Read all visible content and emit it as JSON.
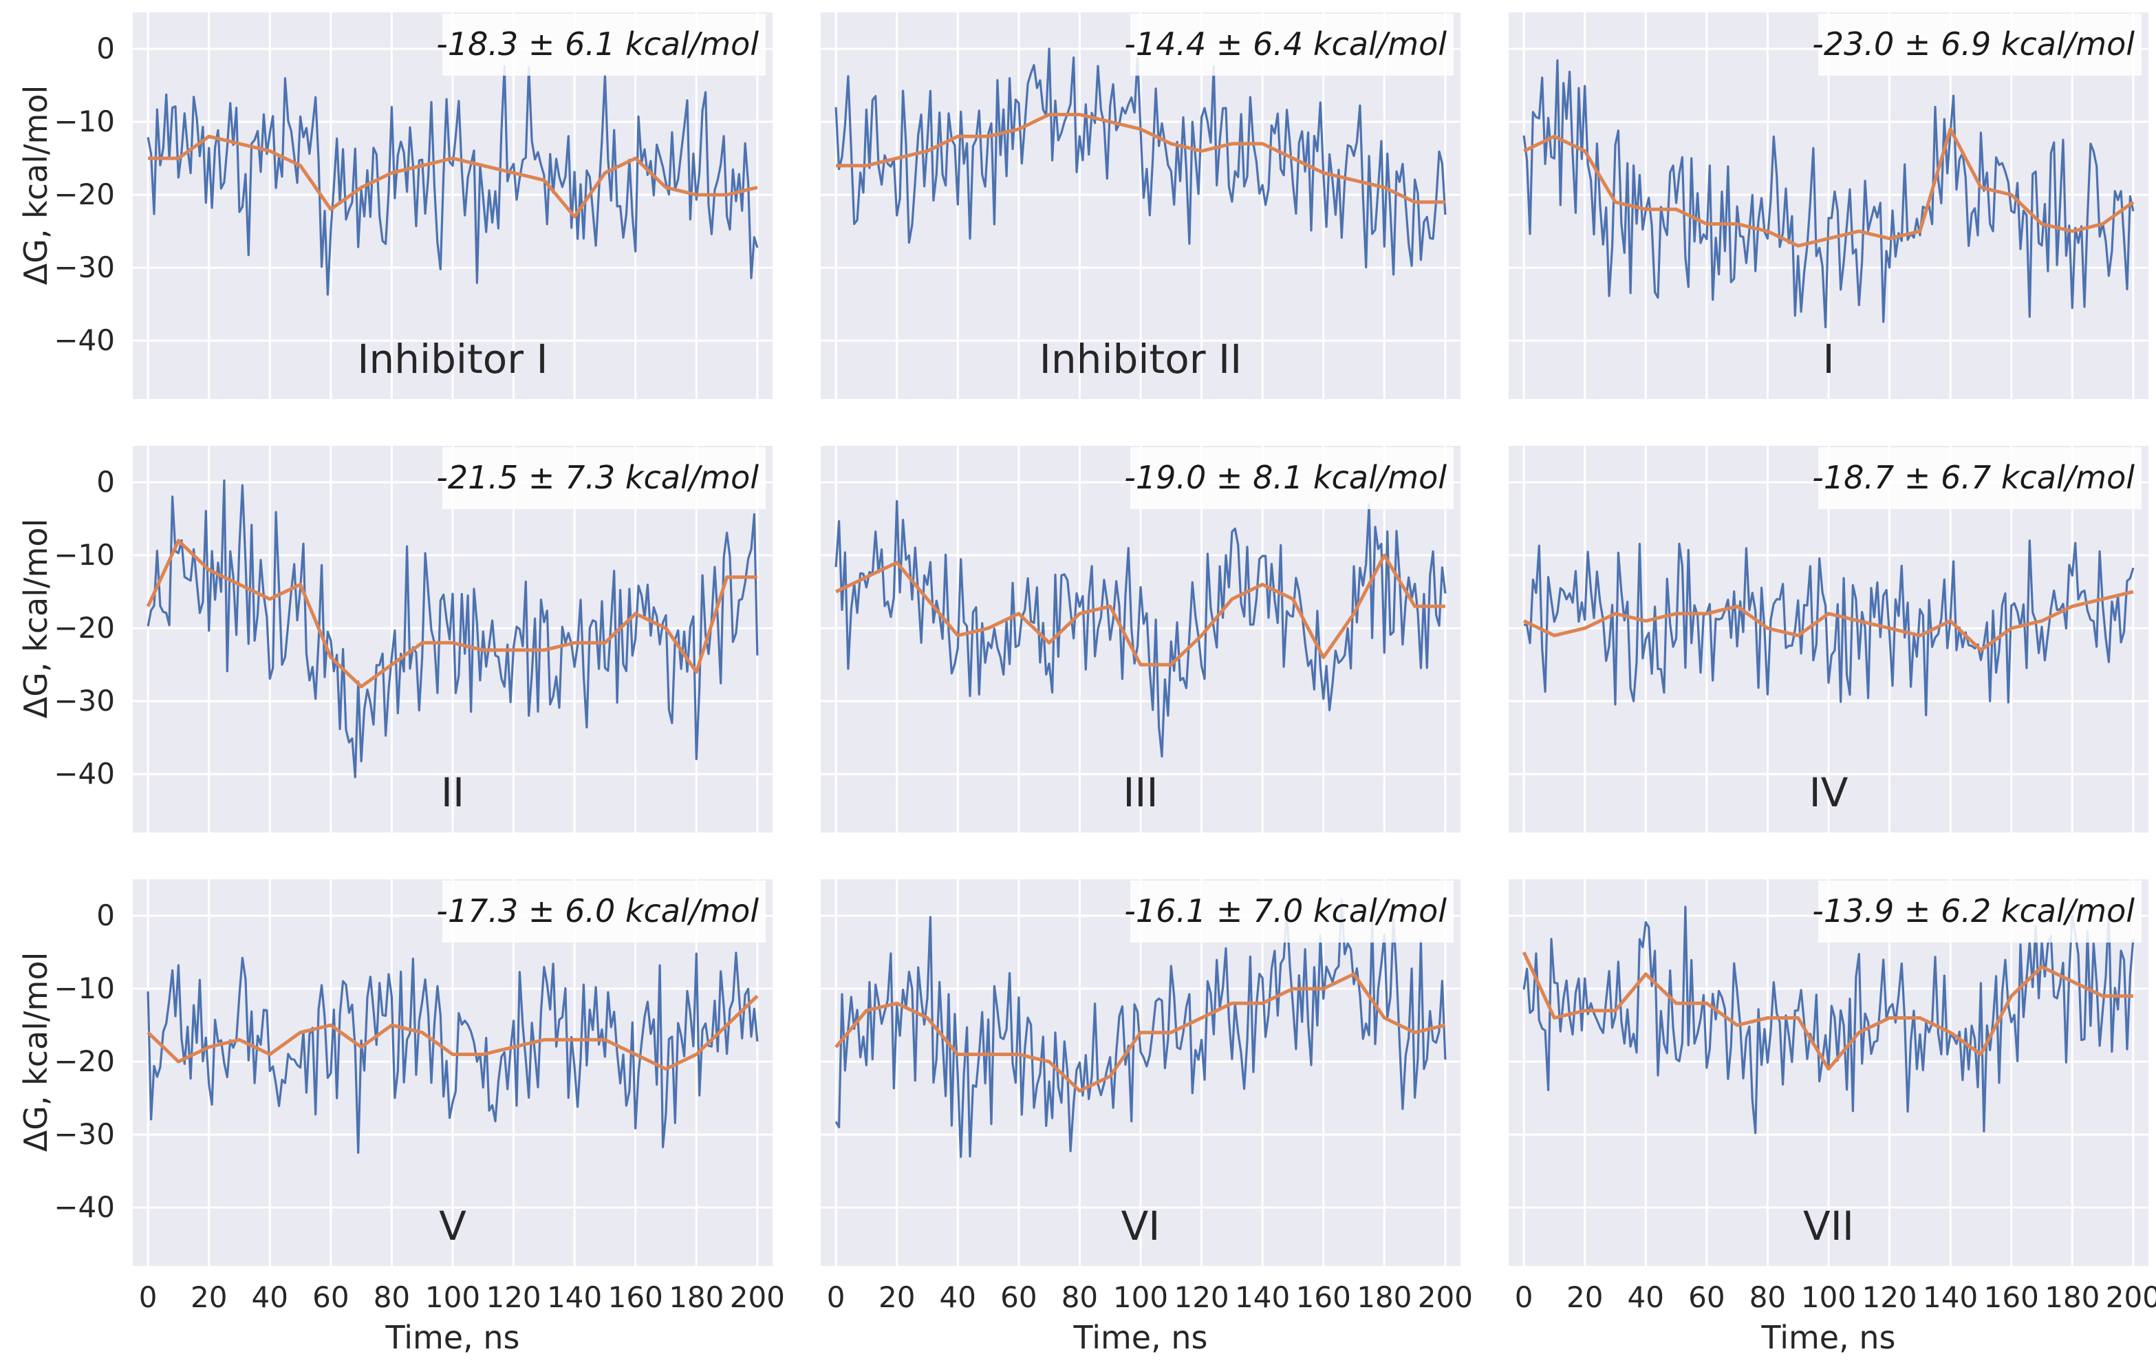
{
  "figure": {
    "ylabel": "ΔG, kcal/mol",
    "xlabel": "Time, ns",
    "y_ticks": [
      0,
      -10,
      -20,
      -30,
      -40
    ],
    "y_tick_labels": [
      "0",
      "−10",
      "−20",
      "−30",
      "−40"
    ],
    "x_ticks": [
      0,
      20,
      40,
      60,
      80,
      100,
      120,
      140,
      160,
      180,
      200
    ],
    "x_tick_labels": [
      "0",
      "20",
      "40",
      "60",
      "80",
      "100",
      "120",
      "140",
      "160",
      "180",
      "200"
    ],
    "colors": {
      "raw": "#4c72b0",
      "smoothed": "#dd8452",
      "background": "#eaeaf2",
      "grid": "#ffffff"
    }
  },
  "chart_data": [
    {
      "type": "line",
      "label": "Inhibitor I",
      "annotation": "-18.3 ± 6.1 kcal/mol",
      "xlim": [
        -5,
        205
      ],
      "ylim": [
        -48,
        5
      ],
      "xlabel": "",
      "ylabel": "ΔG, kcal/mol",
      "series": [
        {
          "name": "raw",
          "x": [
            0,
            10,
            20,
            30,
            40,
            50,
            60,
            70,
            80,
            90,
            100,
            110,
            120,
            130,
            140,
            150,
            160,
            170,
            180,
            190,
            200
          ],
          "values": [
            -14,
            -12,
            -13,
            -16,
            -14,
            -13,
            -25,
            -20,
            -16,
            -18,
            -14,
            -18,
            -15,
            -16,
            -25,
            -12,
            -20,
            -17,
            -16,
            -20,
            -23
          ]
        },
        {
          "name": "smoothed",
          "x": [
            0,
            10,
            20,
            30,
            40,
            50,
            60,
            70,
            80,
            90,
            100,
            110,
            120,
            130,
            140,
            150,
            160,
            170,
            180,
            190,
            200
          ],
          "values": [
            -15,
            -15,
            -12,
            -13,
            -14,
            -16,
            -22,
            -19,
            -17,
            -16,
            -15,
            -16,
            -17,
            -18,
            -23,
            -17,
            -15,
            -19,
            -20,
            -20,
            -19
          ]
        }
      ]
    },
    {
      "type": "line",
      "label": "Inhibitor II",
      "annotation": "-14.4 ± 6.4 kcal/mol",
      "xlim": [
        -5,
        205
      ],
      "ylim": [
        -48,
        5
      ],
      "xlabel": "",
      "ylabel": "",
      "series": [
        {
          "name": "raw",
          "x": [
            0,
            10,
            20,
            30,
            40,
            50,
            60,
            70,
            80,
            90,
            100,
            110,
            120,
            130,
            140,
            150,
            160,
            170,
            180,
            190,
            200
          ],
          "values": [
            -16,
            -15,
            -16,
            -14,
            -12,
            -14,
            -12,
            -8,
            -10,
            -9,
            -12,
            -16,
            -13,
            -14,
            -12,
            -16,
            -18,
            -18,
            -20,
            -22,
            -20
          ]
        },
        {
          "name": "smoothed",
          "x": [
            0,
            10,
            20,
            30,
            40,
            50,
            60,
            70,
            80,
            90,
            100,
            110,
            120,
            130,
            140,
            150,
            160,
            170,
            180,
            190,
            200
          ],
          "values": [
            -16,
            -16,
            -15,
            -14,
            -12,
            -12,
            -11,
            -9,
            -9,
            -10,
            -11,
            -13,
            -14,
            -13,
            -13,
            -15,
            -17,
            -18,
            -19,
            -21,
            -21
          ]
        }
      ]
    },
    {
      "type": "line",
      "label": "I",
      "annotation": "-23.0 ± 6.9 kcal/mol",
      "xlim": [
        -5,
        205
      ],
      "ylim": [
        -48,
        5
      ],
      "xlabel": "",
      "ylabel": "",
      "series": [
        {
          "name": "raw",
          "x": [
            0,
            10,
            20,
            30,
            40,
            50,
            60,
            70,
            80,
            90,
            100,
            110,
            120,
            130,
            140,
            150,
            160,
            170,
            180,
            190,
            200
          ],
          "values": [
            -15,
            -12,
            -14,
            -22,
            -23,
            -22,
            -24,
            -26,
            -25,
            -28,
            -27,
            -25,
            -27,
            -24,
            -12,
            -20,
            -21,
            -24,
            -26,
            -24,
            -21
          ]
        },
        {
          "name": "smoothed",
          "x": [
            0,
            10,
            20,
            30,
            40,
            50,
            60,
            70,
            80,
            90,
            100,
            110,
            120,
            130,
            140,
            150,
            160,
            170,
            180,
            190,
            200
          ],
          "values": [
            -14,
            -12,
            -14,
            -21,
            -22,
            -22,
            -24,
            -24,
            -25,
            -27,
            -26,
            -25,
            -26,
            -25,
            -11,
            -19,
            -20,
            -24,
            -25,
            -24,
            -21
          ]
        }
      ]
    },
    {
      "type": "line",
      "label": "II",
      "annotation": "-21.5 ± 7.3 kcal/mol",
      "xlim": [
        -5,
        205
      ],
      "ylim": [
        -48,
        5
      ],
      "xlabel": "",
      "ylabel": "ΔG, kcal/mol",
      "series": [
        {
          "name": "raw",
          "x": [
            0,
            10,
            20,
            30,
            40,
            50,
            60,
            70,
            80,
            90,
            100,
            110,
            120,
            130,
            140,
            150,
            160,
            170,
            180,
            190,
            200
          ],
          "values": [
            -18,
            -8,
            -12,
            -14,
            -16,
            -14,
            -24,
            -28,
            -24,
            -22,
            -22,
            -23,
            -24,
            -23,
            -22,
            -23,
            -18,
            -20,
            -26,
            -14,
            -13
          ]
        },
        {
          "name": "smoothed",
          "x": [
            0,
            10,
            20,
            30,
            40,
            50,
            60,
            70,
            80,
            90,
            100,
            110,
            120,
            130,
            140,
            150,
            160,
            170,
            180,
            190,
            200
          ],
          "values": [
            -17,
            -8,
            -12,
            -14,
            -16,
            -14,
            -24,
            -28,
            -25,
            -22,
            -22,
            -23,
            -23,
            -23,
            -22,
            -22,
            -18,
            -20,
            -26,
            -13,
            -13
          ]
        }
      ]
    },
    {
      "type": "line",
      "label": "III",
      "annotation": "-19.0 ± 8.1 kcal/mol",
      "xlim": [
        -5,
        205
      ],
      "ylim": [
        -48,
        5
      ],
      "xlabel": "",
      "ylabel": "",
      "series": [
        {
          "name": "raw",
          "x": [
            0,
            10,
            20,
            30,
            40,
            50,
            60,
            70,
            80,
            90,
            100,
            110,
            120,
            130,
            140,
            150,
            160,
            170,
            180,
            190,
            200
          ],
          "values": [
            -16,
            -14,
            -10,
            -16,
            -22,
            -20,
            -18,
            -22,
            -18,
            -18,
            -24,
            -26,
            -20,
            -16,
            -14,
            -16,
            -24,
            -18,
            -9,
            -17,
            -17
          ]
        },
        {
          "name": "smoothed",
          "x": [
            0,
            10,
            20,
            30,
            40,
            50,
            60,
            70,
            80,
            90,
            100,
            110,
            120,
            130,
            140,
            150,
            160,
            170,
            180,
            190,
            200
          ],
          "values": [
            -15,
            -13,
            -11,
            -16,
            -21,
            -20,
            -18,
            -22,
            -18,
            -17,
            -25,
            -25,
            -21,
            -16,
            -14,
            -16,
            -24,
            -18,
            -10,
            -17,
            -17
          ]
        }
      ]
    },
    {
      "type": "line",
      "label": "IV",
      "annotation": "-18.7 ± 6.7 kcal/mol",
      "xlim": [
        -5,
        205
      ],
      "ylim": [
        -48,
        5
      ],
      "xlabel": "",
      "ylabel": "",
      "series": [
        {
          "name": "raw",
          "x": [
            0,
            10,
            20,
            30,
            40,
            50,
            60,
            70,
            80,
            90,
            100,
            110,
            120,
            130,
            140,
            150,
            160,
            170,
            180,
            190,
            200
          ],
          "values": [
            -19,
            -20,
            -20,
            -18,
            -20,
            -18,
            -18,
            -16,
            -20,
            -22,
            -18,
            -19,
            -20,
            -21,
            -19,
            -22,
            -20,
            -20,
            -18,
            -16,
            -15
          ]
        },
        {
          "name": "smoothed",
          "x": [
            0,
            10,
            20,
            30,
            40,
            50,
            60,
            70,
            80,
            90,
            100,
            110,
            120,
            130,
            140,
            150,
            160,
            170,
            180,
            190,
            200
          ],
          "values": [
            -19,
            -21,
            -20,
            -18,
            -19,
            -18,
            -18,
            -17,
            -20,
            -21,
            -18,
            -19,
            -20,
            -21,
            -19,
            -23,
            -20,
            -19,
            -17,
            -16,
            -15
          ]
        }
      ]
    },
    {
      "type": "line",
      "label": "V",
      "annotation": "-17.3 ± 6.0 kcal/mol",
      "xlim": [
        -5,
        205
      ],
      "ylim": [
        -48,
        5
      ],
      "xlabel": "Time, ns",
      "ylabel": "ΔG, kcal/mol",
      "series": [
        {
          "name": "raw",
          "x": [
            0,
            10,
            20,
            30,
            40,
            50,
            60,
            70,
            80,
            90,
            100,
            110,
            120,
            130,
            140,
            150,
            160,
            170,
            180,
            190,
            200
          ],
          "values": [
            -16,
            -20,
            -18,
            -17,
            -19,
            -16,
            -15,
            -18,
            -14,
            -16,
            -19,
            -20,
            -18,
            -16,
            -17,
            -17,
            -19,
            -21,
            -19,
            -14,
            -11
          ]
        },
        {
          "name": "smoothed",
          "x": [
            0,
            10,
            20,
            30,
            40,
            50,
            60,
            70,
            80,
            90,
            100,
            110,
            120,
            130,
            140,
            150,
            160,
            170,
            180,
            190,
            200
          ],
          "values": [
            -16,
            -20,
            -18,
            -17,
            -19,
            -16,
            -15,
            -18,
            -15,
            -16,
            -19,
            -19,
            -18,
            -17,
            -17,
            -17,
            -19,
            -21,
            -19,
            -15,
            -11
          ]
        }
      ]
    },
    {
      "type": "line",
      "label": "VI",
      "annotation": "-16.1 ± 7.0 kcal/mol",
      "xlim": [
        -5,
        205
      ],
      "ylim": [
        -48,
        5
      ],
      "xlabel": "Time, ns",
      "ylabel": "",
      "series": [
        {
          "name": "raw",
          "x": [
            0,
            10,
            20,
            30,
            40,
            50,
            60,
            70,
            80,
            90,
            100,
            110,
            120,
            130,
            140,
            150,
            160,
            170,
            180,
            190,
            200
          ],
          "values": [
            -18,
            -13,
            -12,
            -14,
            -19,
            -19,
            -20,
            -20,
            -24,
            -22,
            -15,
            -16,
            -14,
            -12,
            -12,
            -10,
            -10,
            -8,
            -14,
            -16,
            -15
          ]
        },
        {
          "name": "smoothed",
          "x": [
            0,
            10,
            20,
            30,
            40,
            50,
            60,
            70,
            80,
            90,
            100,
            110,
            120,
            130,
            140,
            150,
            160,
            170,
            180,
            190,
            200
          ],
          "values": [
            -18,
            -13,
            -12,
            -14,
            -19,
            -19,
            -19,
            -20,
            -24,
            -22,
            -16,
            -16,
            -14,
            -12,
            -12,
            -10,
            -10,
            -8,
            -14,
            -16,
            -15
          ]
        }
      ]
    },
    {
      "type": "line",
      "label": "VII",
      "annotation": "-13.9 ± 6.2 kcal/mol",
      "xlim": [
        -5,
        205
      ],
      "ylim": [
        -48,
        5
      ],
      "xlabel": "Time, ns",
      "ylabel": "",
      "series": [
        {
          "name": "raw",
          "x": [
            0,
            10,
            20,
            30,
            40,
            50,
            60,
            70,
            80,
            90,
            100,
            110,
            120,
            130,
            140,
            150,
            160,
            170,
            180,
            190,
            200
          ],
          "values": [
            -6,
            -14,
            -13,
            -13,
            -8,
            -12,
            -12,
            -15,
            -14,
            -14,
            -20,
            -16,
            -14,
            -14,
            -16,
            -18,
            -11,
            -7,
            -9,
            -11,
            -11
          ]
        },
        {
          "name": "smoothed",
          "x": [
            0,
            10,
            20,
            30,
            40,
            50,
            60,
            70,
            80,
            90,
            100,
            110,
            120,
            130,
            140,
            150,
            160,
            170,
            180,
            190,
            200
          ],
          "values": [
            -5,
            -14,
            -13,
            -13,
            -8,
            -12,
            -12,
            -15,
            -14,
            -14,
            -21,
            -16,
            -14,
            -14,
            -16,
            -19,
            -11,
            -7,
            -9,
            -11,
            -11
          ]
        }
      ]
    }
  ]
}
